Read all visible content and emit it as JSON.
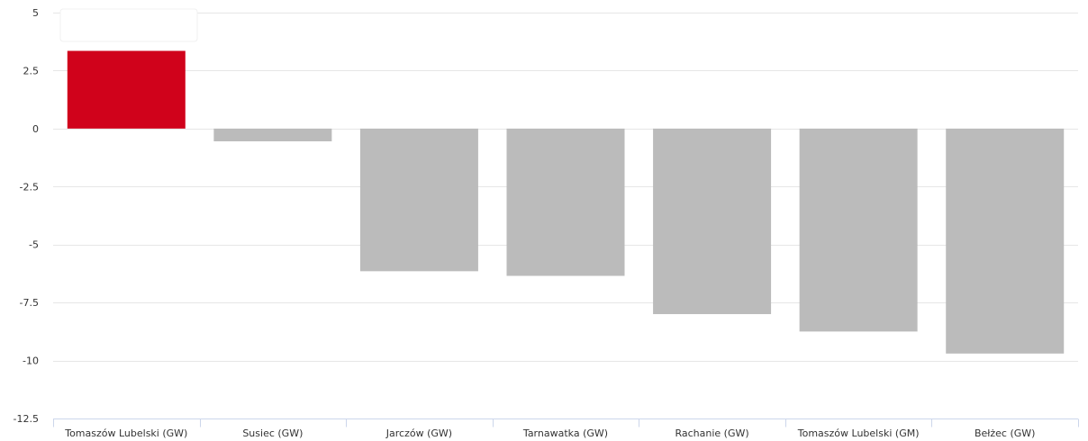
{
  "chart_data": {
    "type": "bar",
    "title": "",
    "xlabel": "",
    "ylabel": "",
    "categories": [
      "Tomaszów Lubelski (GW)",
      "Susiec (GW)",
      "Jarczów (GW)",
      "Tarnawatka (GW)",
      "Rachanie (GW)",
      "Tomaszów Lubelski (GM)",
      "Bełżec (GW)"
    ],
    "values": [
      3.35,
      -0.55,
      -6.15,
      -6.35,
      -8.0,
      -8.75,
      -9.7
    ],
    "ylim": [
      -12.5,
      5
    ],
    "yticks": [
      5,
      2.5,
      0,
      -2.5,
      -5,
      -7.5,
      -10,
      -12.5
    ],
    "ytick_labels": [
      "5",
      "2.5",
      "0",
      "-2.5",
      "-5",
      "-7.5",
      "-10",
      "-12.5"
    ],
    "grid": true,
    "legend": "none",
    "colors": {
      "highlight": "#d0021b",
      "default": "#bbbbbb"
    },
    "highlight_index": 0
  }
}
